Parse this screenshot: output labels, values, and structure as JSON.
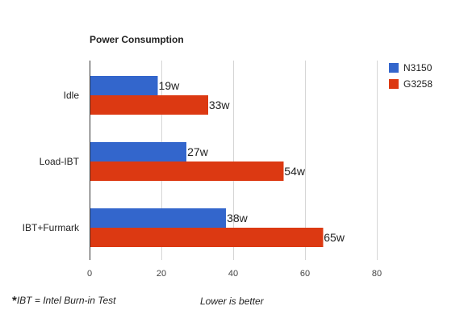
{
  "chart_data": {
    "type": "bar",
    "orientation": "horizontal",
    "title": "Power Consumption",
    "categories": [
      "Idle",
      "Load-IBT",
      "IBT+Furmark"
    ],
    "series": [
      {
        "name": "N3150",
        "color": "#3366cc",
        "values": [
          19,
          27,
          38
        ],
        "labels": [
          "19w",
          "27w",
          "38w"
        ]
      },
      {
        "name": "G3258",
        "color": "#dc3912",
        "values": [
          33,
          54,
          65
        ],
        "labels": [
          "33w",
          "54w",
          "65w"
        ]
      }
    ],
    "xlim": [
      0,
      80
    ],
    "xticks": [
      0,
      20,
      40,
      60,
      80
    ],
    "grid": true,
    "legend_position": "right"
  },
  "footnote": {
    "star": "*",
    "text": "IBT = Intel Burn-in Test"
  },
  "annotation": "Lower is better"
}
